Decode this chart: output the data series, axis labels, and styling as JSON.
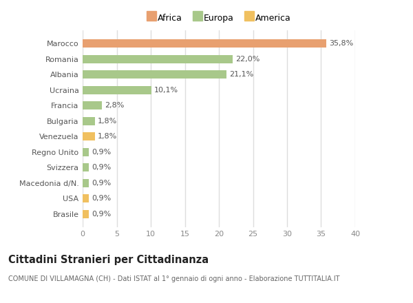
{
  "countries": [
    "Brasile",
    "USA",
    "Macedonia d/N.",
    "Svizzera",
    "Regno Unito",
    "Venezuela",
    "Bulgaria",
    "Francia",
    "Ucraina",
    "Albania",
    "Romania",
    "Marocco"
  ],
  "values": [
    0.9,
    0.9,
    0.9,
    0.9,
    0.9,
    1.8,
    1.8,
    2.8,
    10.1,
    21.1,
    22.0,
    35.8
  ],
  "labels": [
    "0,9%",
    "0,9%",
    "0,9%",
    "0,9%",
    "0,9%",
    "1,8%",
    "1,8%",
    "2,8%",
    "10,1%",
    "21,1%",
    "22,0%",
    "35,8%"
  ],
  "colors": [
    "#f0c060",
    "#f0c060",
    "#a8c88a",
    "#a8c88a",
    "#a8c88a",
    "#f0c060",
    "#a8c88a",
    "#a8c88a",
    "#a8c88a",
    "#a8c88a",
    "#a8c88a",
    "#e8a070"
  ],
  "legend_labels": [
    "Africa",
    "Europa",
    "America"
  ],
  "legend_colors": [
    "#e8a070",
    "#a8c88a",
    "#f0c060"
  ],
  "title": "Cittadini Stranieri per Cittadinanza",
  "subtitle": "COMUNE DI VILLAMAGNA (CH) - Dati ISTAT al 1° gennaio di ogni anno - Elaborazione TUTTITALIA.IT",
  "xlim": [
    0,
    40
  ],
  "xticks": [
    0,
    5,
    10,
    15,
    20,
    25,
    30,
    35,
    40
  ],
  "background_color": "#ffffff",
  "bar_height": 0.55
}
